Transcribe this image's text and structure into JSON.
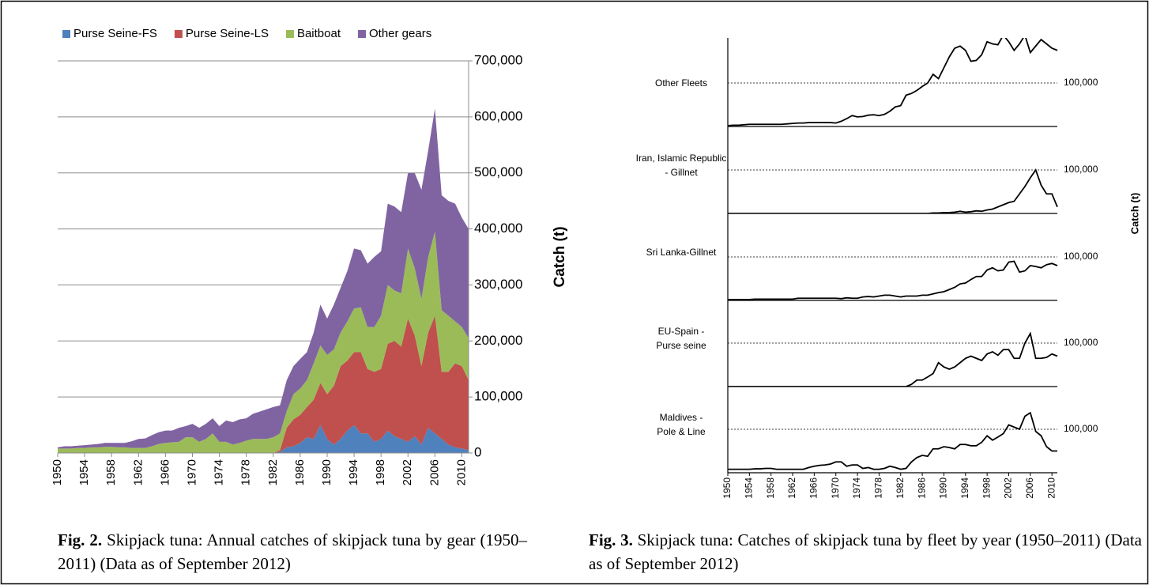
{
  "chart_data": [
    {
      "type": "area",
      "x": [
        1950,
        1951,
        1952,
        1953,
        1954,
        1955,
        1956,
        1957,
        1958,
        1959,
        1960,
        1961,
        1962,
        1963,
        1964,
        1965,
        1966,
        1967,
        1968,
        1969,
        1970,
        1971,
        1972,
        1973,
        1974,
        1975,
        1976,
        1977,
        1978,
        1979,
        1980,
        1981,
        1982,
        1983,
        1984,
        1985,
        1986,
        1987,
        1988,
        1989,
        1990,
        1991,
        1992,
        1993,
        1994,
        1995,
        1996,
        1997,
        1998,
        1999,
        2000,
        2001,
        2002,
        2003,
        2004,
        2005,
        2006,
        2007,
        2008,
        2009,
        2010,
        2011
      ],
      "xlim": [
        1950,
        2011
      ],
      "xticks": [
        1950,
        1954,
        1958,
        1962,
        1966,
        1970,
        1974,
        1978,
        1982,
        1986,
        1990,
        1994,
        1998,
        2002,
        2006,
        2010
      ],
      "ylim": [
        0,
        700000
      ],
      "yticks": [
        0,
        {
          "value": 100000,
          "label": "100,000"
        },
        {
          "value": 200000,
          "label": "200,000"
        },
        {
          "value": 300000,
          "label": "300,000"
        },
        {
          "value": 400000,
          "label": "400,000"
        },
        {
          "value": 500000,
          "label": "500,000"
        },
        {
          "value": 600000,
          "label": "600,000"
        },
        {
          "value": 700000,
          "label": "700,000"
        }
      ],
      "ylabel": "Catch (t)",
      "grid": true,
      "legend": "top",
      "stacked": true,
      "series": [
        {
          "name": "Purse Seine-FS",
          "color": "#4f81bd",
          "values": [
            0,
            0,
            0,
            0,
            0,
            0,
            0,
            0,
            0,
            0,
            0,
            0,
            0,
            0,
            0,
            0,
            0,
            0,
            0,
            0,
            0,
            0,
            0,
            0,
            0,
            0,
            0,
            0,
            0,
            0,
            0,
            0,
            0,
            2000,
            10000,
            12000,
            18000,
            28000,
            25000,
            50000,
            25000,
            15000,
            25000,
            40000,
            50000,
            35000,
            35000,
            20000,
            25000,
            40000,
            30000,
            25000,
            20000,
            30000,
            15000,
            45000,
            35000,
            25000,
            15000,
            10000,
            8000,
            5000
          ]
        },
        {
          "name": "Purse Seine-LS",
          "color": "#c0504d",
          "values": [
            0,
            0,
            0,
            0,
            0,
            0,
            0,
            0,
            0,
            0,
            0,
            0,
            0,
            0,
            0,
            0,
            0,
            0,
            0,
            0,
            0,
            0,
            0,
            0,
            0,
            0,
            0,
            0,
            0,
            0,
            0,
            0,
            0,
            3000,
            35000,
            48000,
            50000,
            54000,
            70000,
            75000,
            80000,
            105000,
            130000,
            125000,
            130000,
            145000,
            115000,
            125000,
            125000,
            155000,
            170000,
            165000,
            220000,
            180000,
            140000,
            170000,
            210000,
            120000,
            130000,
            150000,
            147000,
            125000
          ]
        },
        {
          "name": "Baitboat",
          "color": "#9bbb59",
          "values": [
            8000,
            8000,
            8000,
            9000,
            9000,
            10000,
            10000,
            11000,
            11000,
            10000,
            10000,
            9000,
            9000,
            9000,
            12000,
            16000,
            18000,
            19000,
            20000,
            28000,
            28000,
            20000,
            25000,
            35000,
            20000,
            20000,
            15000,
            18000,
            22000,
            25000,
            25000,
            25000,
            28000,
            30000,
            30000,
            45000,
            47000,
            48000,
            65000,
            67000,
            70000,
            65000,
            60000,
            70000,
            78000,
            80000,
            75000,
            80000,
            95000,
            105000,
            90000,
            95000,
            125000,
            120000,
            120000,
            135000,
            150000,
            110000,
            100000,
            75000,
            70000,
            75000
          ]
        },
        {
          "name": "Other gears",
          "color": "#8064a2",
          "values": [
            2000,
            4000,
            4000,
            4000,
            5000,
            5000,
            6000,
            7000,
            7000,
            8000,
            8000,
            12000,
            16000,
            17000,
            20000,
            21000,
            22000,
            21000,
            25000,
            20000,
            24000,
            25000,
            27000,
            27000,
            28000,
            38000,
            40000,
            42000,
            40000,
            45000,
            49000,
            53000,
            54000,
            50000,
            55000,
            50000,
            53000,
            50000,
            55000,
            73000,
            65000,
            80000,
            80000,
            90000,
            107000,
            102000,
            113000,
            125000,
            115000,
            145000,
            150000,
            145000,
            135000,
            170000,
            195000,
            190000,
            220000,
            205000,
            205000,
            210000,
            195000,
            195000
          ]
        }
      ],
      "caption_label": "Fig. 2.",
      "caption": "Skipjack tuna: Annual catches of skipjack tuna by gear (1950–2011) (Data as of September 2012)"
    },
    {
      "type": "line",
      "x": [
        1950,
        1951,
        1952,
        1953,
        1954,
        1955,
        1956,
        1957,
        1958,
        1959,
        1960,
        1961,
        1962,
        1963,
        1964,
        1965,
        1966,
        1967,
        1968,
        1969,
        1970,
        1971,
        1972,
        1973,
        1974,
        1975,
        1976,
        1977,
        1978,
        1979,
        1980,
        1981,
        1982,
        1983,
        1984,
        1985,
        1986,
        1987,
        1988,
        1989,
        1990,
        1991,
        1992,
        1993,
        1994,
        1995,
        1996,
        1997,
        1998,
        1999,
        2000,
        2001,
        2002,
        2003,
        2004,
        2005,
        2006,
        2007,
        2008,
        2009,
        2010,
        2011
      ],
      "xlim": [
        1950,
        2011
      ],
      "xticks": [
        1950,
        1954,
        1958,
        1962,
        1966,
        1970,
        1974,
        1978,
        1982,
        1986,
        1990,
        1994,
        1998,
        2002,
        2006,
        2010
      ],
      "ylim": [
        0,
        200000
      ],
      "yticks": [
        {
          "value": 100000,
          "label": "100,000"
        }
      ],
      "ylabel": "Catch (t)",
      "color": "#000000",
      "panels": [
        {
          "name": "Other Fleets",
          "values": [
            2000,
            3000,
            3000,
            4000,
            5000,
            5000,
            5000,
            5000,
            5000,
            5000,
            5000,
            6000,
            7000,
            8000,
            8000,
            9000,
            9000,
            9000,
            9000,
            9000,
            8000,
            12000,
            18000,
            25000,
            22000,
            23000,
            26000,
            27000,
            25000,
            28000,
            35000,
            45000,
            48000,
            72000,
            76000,
            83000,
            92000,
            100000,
            120000,
            110000,
            135000,
            160000,
            180000,
            185000,
            175000,
            150000,
            152000,
            165000,
            195000,
            190000,
            188000,
            210000,
            195000,
            175000,
            190000,
            210000,
            170000,
            185000,
            200000,
            190000,
            180000,
            175000
          ]
        },
        {
          "name": "Iran, Islamic Republic - Gillnet",
          "values": [
            0,
            0,
            0,
            0,
            0,
            0,
            0,
            0,
            0,
            0,
            0,
            0,
            0,
            0,
            0,
            0,
            0,
            0,
            0,
            0,
            0,
            0,
            0,
            0,
            0,
            0,
            0,
            0,
            0,
            0,
            0,
            0,
            0,
            0,
            0,
            0,
            0,
            0,
            1000,
            1000,
            2000,
            2000,
            3000,
            5000,
            3000,
            4000,
            6000,
            5000,
            8000,
            10000,
            15000,
            20000,
            25000,
            28000,
            45000,
            62000,
            82000,
            100000,
            65000,
            45000,
            45000,
            15000
          ]
        },
        {
          "name": "Sri Lanka-Gillnet",
          "values": [
            2000,
            2000,
            2000,
            2000,
            2000,
            3000,
            3000,
            3000,
            3000,
            3000,
            3000,
            3000,
            3000,
            5000,
            5000,
            5000,
            5000,
            5000,
            5000,
            5000,
            5000,
            4000,
            6000,
            5000,
            5000,
            8000,
            9000,
            8000,
            10000,
            12000,
            12000,
            10000,
            8000,
            10000,
            10000,
            10000,
            12000,
            12000,
            15000,
            18000,
            20000,
            25000,
            30000,
            38000,
            40000,
            48000,
            55000,
            55000,
            70000,
            75000,
            68000,
            70000,
            88000,
            90000,
            65000,
            68000,
            80000,
            78000,
            75000,
            82000,
            85000,
            80000
          ]
        },
        {
          "name": "EU-Spain - Purse seine",
          "values": [
            0,
            0,
            0,
            0,
            0,
            0,
            0,
            0,
            0,
            0,
            0,
            0,
            0,
            0,
            0,
            0,
            0,
            0,
            0,
            0,
            0,
            0,
            0,
            0,
            0,
            0,
            0,
            0,
            0,
            0,
            0,
            0,
            0,
            0,
            5000,
            15000,
            15000,
            22000,
            30000,
            55000,
            45000,
            40000,
            45000,
            55000,
            65000,
            70000,
            65000,
            60000,
            75000,
            80000,
            72000,
            85000,
            85000,
            65000,
            65000,
            100000,
            122000,
            65000,
            65000,
            67000,
            75000,
            70000
          ]
        },
        {
          "name": "Maldives - Pole & Line",
          "values": [
            8000,
            8000,
            8000,
            8000,
            8000,
            9000,
            9000,
            10000,
            10000,
            8000,
            8000,
            8000,
            8000,
            8000,
            8000,
            12000,
            15000,
            17000,
            18000,
            20000,
            25000,
            25000,
            15000,
            18000,
            18000,
            10000,
            12000,
            8000,
            8000,
            10000,
            15000,
            12000,
            8000,
            10000,
            25000,
            35000,
            40000,
            38000,
            55000,
            55000,
            60000,
            58000,
            55000,
            65000,
            65000,
            62000,
            62000,
            70000,
            85000,
            75000,
            82000,
            90000,
            110000,
            105000,
            100000,
            130000,
            138000,
            95000,
            85000,
            60000,
            50000,
            50000
          ]
        }
      ],
      "caption_label": "Fig. 3.",
      "caption": "Skipjack tuna: Catches of skipjack tuna by fleet by year (1950–2011) (Data as of September 2012)"
    }
  ]
}
